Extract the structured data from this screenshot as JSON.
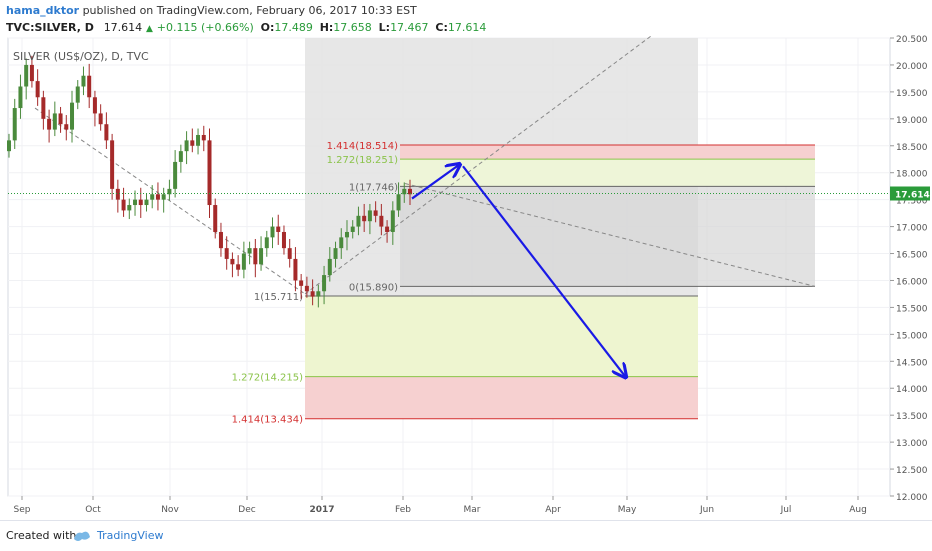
{
  "header": {
    "user": "hama_dktor",
    "published": "published on TradingView.com, February 06, 2017 10:33 EST",
    "symbol_line": "TVC:SILVER, D",
    "last": "17.614",
    "change": "+0.115 (+0.66%)",
    "o_label": "O:",
    "o": "17.489",
    "h_label": "H:",
    "h": "17.658",
    "l_label": "L:",
    "l": "17.467",
    "c_label": "C:",
    "c": "17.614"
  },
  "chart_label": "SILVER (US$/OZ), D, TVC",
  "footer": {
    "created": "Created with",
    "brand": "TradingView"
  },
  "colors": {
    "up": "#4a8a3c",
    "down": "#a52a2a",
    "arrow": "#1a1ae6",
    "price_tag": "#2a9b3a"
  },
  "chart_data": {
    "type": "candlestick",
    "x_ticks": [
      "Sep",
      "Oct",
      "Nov",
      "Dec",
      "2017",
      "Feb",
      "Mar",
      "Apr",
      "May",
      "Jun",
      "Jul",
      "Aug"
    ],
    "y_ticks": [
      "12.000",
      "12.500",
      "13.000",
      "13.500",
      "14.000",
      "14.500",
      "15.000",
      "15.500",
      "16.000",
      "16.500",
      "17.000",
      "17.500",
      "18.000",
      "18.500",
      "19.000",
      "19.500",
      "20.000",
      "20.500"
    ],
    "ylim": [
      12.0,
      20.5
    ],
    "last_price": "17.614",
    "closes": [
      18.6,
      19.2,
      19.6,
      20.0,
      19.7,
      19.4,
      19.0,
      18.8,
      19.1,
      18.9,
      18.8,
      19.3,
      19.6,
      19.8,
      19.4,
      19.1,
      18.9,
      18.6,
      17.7,
      17.5,
      17.3,
      17.4,
      17.5,
      17.4,
      17.5,
      17.6,
      17.5,
      17.6,
      17.7,
      18.2,
      18.4,
      18.6,
      18.5,
      18.7,
      18.6,
      17.4,
      16.9,
      16.6,
      16.4,
      16.3,
      16.2,
      16.5,
      16.6,
      16.3,
      16.6,
      16.8,
      17.0,
      16.9,
      16.6,
      16.4,
      16.0,
      15.9,
      15.8,
      15.7,
      15.8,
      16.1,
      16.4,
      16.6,
      16.8,
      16.9,
      17.0,
      17.2,
      17.1,
      17.3,
      17.2,
      17.0,
      16.9,
      17.3,
      17.6,
      17.7,
      17.6
    ],
    "fib_levels": [
      {
        "label": "1.414(18.514)",
        "value": 18.514,
        "color": "#d32f2f"
      },
      {
        "label": "1.272(18.251)",
        "value": 18.251,
        "color": "#8bc34a"
      },
      {
        "label": "1(17.746)",
        "value": 17.746,
        "color": "#666666"
      },
      {
        "label": "0(15.890)",
        "value": 15.89,
        "color": "#666666"
      },
      {
        "label": "1(15.711)",
        "value": 15.711,
        "color": "#666666"
      },
      {
        "label": "1.272(14.215)",
        "value": 14.215,
        "color": "#8bc34a"
      },
      {
        "label": "1.414(13.434)",
        "value": 13.434,
        "color": "#d32f2f"
      }
    ]
  }
}
